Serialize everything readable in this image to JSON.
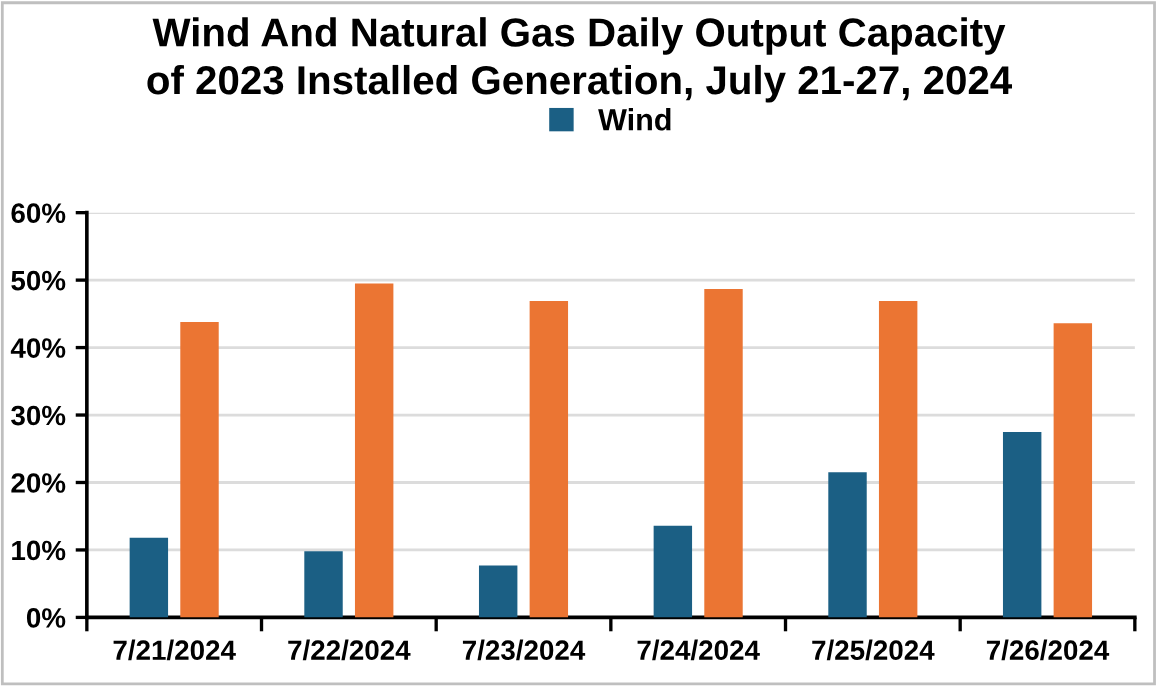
{
  "chart_data": {
    "type": "bar",
    "title": "Wind And Natural Gas Daily Output Capacity\nof 2023 Installed Generation, July 21-27, 2024",
    "categories": [
      "7/21/2024",
      "7/22/2024",
      "7/23/2024",
      "7/24/2024",
      "7/25/2024",
      "7/26/2024"
    ],
    "series": [
      {
        "name": "Wind",
        "color": "#1b5f84",
        "values": [
          11.8,
          9.8,
          7.7,
          13.6,
          21.5,
          27.5
        ]
      },
      {
        "color": "#eb7533",
        "values": [
          43.8,
          49.5,
          46.9,
          48.7,
          46.9,
          43.6
        ]
      }
    ],
    "ylim": [
      0,
      60
    ],
    "yticks": [
      {
        "value": 0,
        "label": "0%"
      },
      {
        "value": 10,
        "label": "10%"
      },
      {
        "value": 20,
        "label": "20%"
      },
      {
        "value": 30,
        "label": "30%"
      },
      {
        "value": 40,
        "label": "40%"
      },
      {
        "value": 50,
        "label": "50%"
      },
      {
        "value": 60,
        "label": "60%"
      }
    ],
    "grid": "y",
    "legend": "top"
  }
}
